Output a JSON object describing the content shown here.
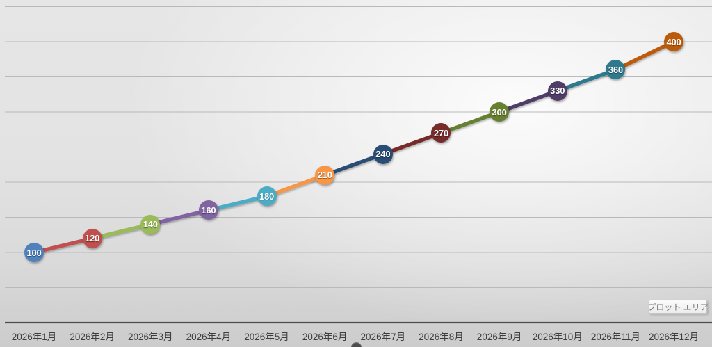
{
  "chart_data": {
    "type": "line",
    "title": "",
    "categories": [
      "2026年1月",
      "2026年2月",
      "2026年3月",
      "2026年4月",
      "2026年5月",
      "2026年6月",
      "2026年7月",
      "2026年8月",
      "2026年9月",
      "2026年10月",
      "2026年11月",
      "2026年12月"
    ],
    "series": [
      {
        "name": "",
        "values": [
          100,
          120,
          140,
          160,
          180,
          210,
          240,
          270,
          300,
          330,
          360,
          400
        ]
      }
    ],
    "point_colors": [
      "#4F81BD",
      "#C0504D",
      "#9BBB59",
      "#8064A2",
      "#4BACC6",
      "#F79646",
      "#2A4D75",
      "#772C2A",
      "#668030",
      "#4F3D68",
      "#2E7A8D",
      "#BC5A0B"
    ],
    "segment_color_rule": "segment between point i and i+1 uses color of point i+1",
    "data_label_position": "inside marker, white bold",
    "y_axis": {
      "min": 0,
      "max": 450,
      "step": 50,
      "tick_labels_visible": false
    },
    "x_axis": {
      "tick_labels_visible": true,
      "label_color": "#3d3d3d"
    },
    "grid": true,
    "gridline_color": "#b9b9b9",
    "axis_line_color": "#4d4d4d",
    "legend": "none"
  },
  "overlay": {
    "plot_area_tooltip": "プロット エリア"
  }
}
